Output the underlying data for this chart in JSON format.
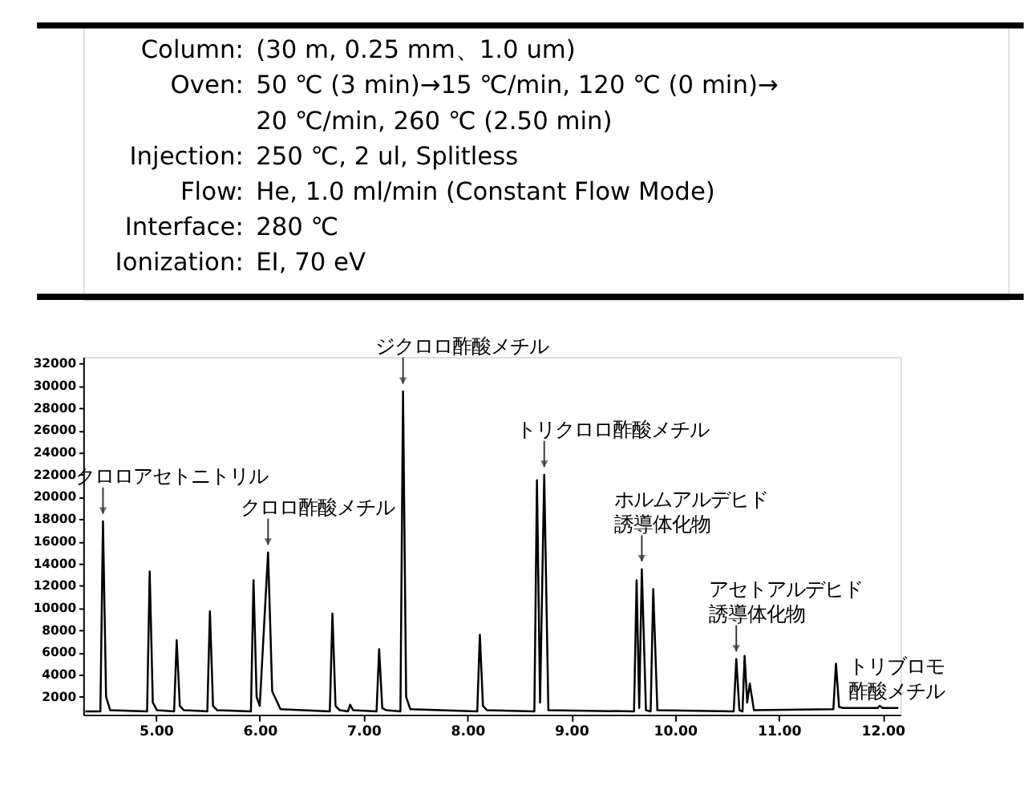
{
  "chart_data": {
    "type": "line",
    "annotations": [
      "Column: (30 m, 0.25 mm、1.0 um)",
      "Oven: 50 ℃ (3 min)→15 ℃/min, 120 ℃ (0 min)→",
      "20 ℃/min, 260 ℃ (2.50 min)",
      "Injection: 250 ℃, 2 ul, Splitless",
      "Flow: He,  1.0 ml/min (Constant Flow Mode)",
      "Interface: 280 ℃",
      "Ionization:  EI, 70 eV",
      {
        "text": "クロロアセトニトリル",
        "x": 4.49,
        "y": 17800
      },
      {
        "text": "クロロ酢酸メチル",
        "x": 6.08,
        "y": 15000
      },
      {
        "text": "ジクロロ酢酸メチル",
        "x": 7.38,
        "y": 29500
      },
      {
        "text": "トリクロロ酢酸メチル",
        "x": 8.74,
        "y": 22000
      },
      {
        "text": "ホルムアルデヒド",
        "x": 9.68,
        "y": 13500
      },
      {
        "text": "誘導体化物",
        "x": 9.68,
        "y": 13500
      },
      {
        "text": "アセトアルデヒド",
        "x": 10.59,
        "y": 5400
      },
      {
        "text": "誘導体化物",
        "x": 10.59,
        "y": 5400
      },
      {
        "text": "トリブロモ",
        "x": 11.55,
        "y": 5000
      },
      {
        "text": "酢酸メチル",
        "x": 11.55,
        "y": 5000
      }
    ],
    "series": [
      {
        "color": "#000000",
        "x": [
          4.32,
          4.465,
          4.49,
          4.52,
          4.56,
          4.915,
          4.94,
          4.97,
          5.01,
          5.175,
          5.2,
          5.23,
          5.27,
          5.495,
          5.52,
          5.55,
          5.59,
          5.915,
          5.94,
          5.97,
          6.0,
          6.08,
          6.12,
          6.2,
          6.675,
          6.7,
          6.73,
          6.77,
          6.85,
          6.87,
          6.9,
          7.125,
          7.15,
          7.18,
          7.22,
          7.355,
          7.38,
          7.41,
          7.45,
          8.095,
          8.12,
          8.15,
          8.19,
          8.645,
          8.67,
          8.7,
          8.74,
          8.78,
          9.605,
          9.63,
          9.655,
          9.68,
          9.72,
          9.765,
          9.79,
          9.83,
          10.565,
          10.59,
          10.62,
          10.65,
          10.67,
          10.695,
          10.72,
          10.76,
          11.525,
          11.55,
          11.58,
          11.62,
          11.95,
          11.97,
          12.0,
          12.15
        ],
        "values": [
          700,
          700,
          17800,
          2000,
          800,
          700,
          13300,
          1500,
          800,
          700,
          7100,
          1200,
          800,
          700,
          9700,
          1200,
          800,
          700,
          12500,
          2000,
          1200,
          15000,
          2500,
          900,
          700,
          9500,
          1200,
          800,
          700,
          1300,
          800,
          700,
          6300,
          1000,
          800,
          700,
          29500,
          2000,
          900,
          700,
          7600,
          1200,
          800,
          700,
          21500,
          1500,
          22000,
          800,
          700,
          12500,
          1000,
          13500,
          800,
          700,
          11700,
          800,
          700,
          5400,
          800,
          700,
          5700,
          1500,
          3200,
          800,
          900,
          5000,
          1100,
          1000,
          1000,
          1200,
          1000,
          1000
        ]
      }
    ],
    "xlim": [
      4.3,
      12.17
    ],
    "xticks": [
      {
        "value": 5,
        "label": "5.00"
      },
      {
        "value": 6,
        "label": "6.00"
      },
      {
        "value": 7,
        "label": "7.00"
      },
      {
        "value": 8,
        "label": "8.00"
      },
      {
        "value": 9,
        "label": "9.00"
      },
      {
        "value": 10,
        "label": "10.00"
      },
      {
        "value": 11,
        "label": "11.00"
      },
      {
        "value": 12,
        "label": "12.00"
      }
    ],
    "ylim": [
      400,
      32600
    ],
    "yticks": [
      2000,
      4000,
      6000,
      8000,
      10000,
      12000,
      14000,
      16000,
      18000,
      20000,
      22000,
      24000,
      26000,
      28000,
      30000,
      32000
    ],
    "grid": false,
    "marker": "none",
    "line_style": "solid"
  }
}
